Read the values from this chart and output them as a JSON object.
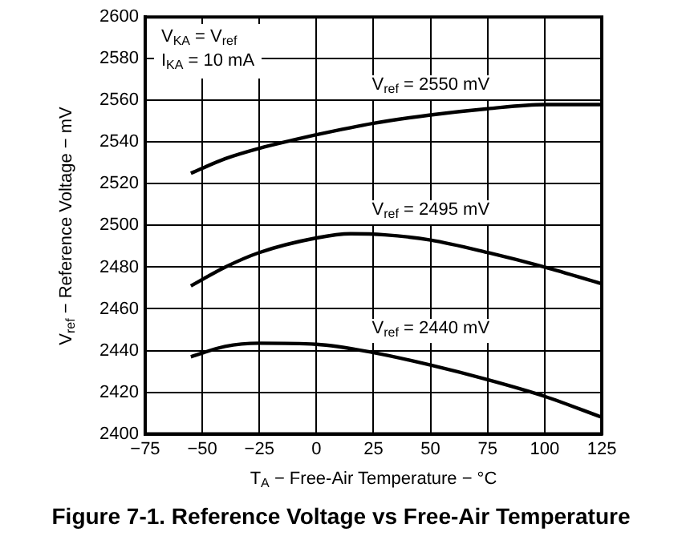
{
  "chart_data": {
    "type": "line",
    "title": "Figure 7-1. Reference Voltage vs Free-Air Temperature",
    "xlabel": "T$_{A}$ − Free-Air Temperature − °C",
    "ylabel": "V$_{ref}$ − Reference Voltage − mV",
    "annotations": [
      "V$_{KA}$ = V$_{ref}$",
      "I$_{KA}$ = 10 mA"
    ],
    "xlim": [
      -75,
      125
    ],
    "xticks": [
      -75,
      -50,
      -25,
      0,
      25,
      50,
      75,
      100,
      125
    ],
    "ylim": [
      2400,
      2600
    ],
    "yticks": [
      2400,
      2420,
      2440,
      2460,
      2480,
      2500,
      2520,
      2540,
      2560,
      2580,
      2600
    ],
    "grid": true,
    "legend": false,
    "marker": "none",
    "line_style": "solid",
    "series": [
      {
        "name": "V$_{ref}$ = 2550 mV",
        "color": "#000000",
        "x": [
          -55,
          -40,
          -25,
          -10,
          0,
          25,
          50,
          75,
          100,
          125
        ],
        "values": [
          2525,
          2532,
          2537,
          2541,
          2543.5,
          2549,
          2553,
          2556,
          2558,
          2558
        ]
      },
      {
        "name": "V$_{ref}$ = 2495 mV",
        "color": "#000000",
        "x": [
          -55,
          -40,
          -25,
          0,
          15,
          30,
          50,
          75,
          100,
          125
        ],
        "values": [
          2471,
          2480,
          2487,
          2494,
          2496,
          2495.5,
          2493,
          2487,
          2480,
          2472
        ]
      },
      {
        "name": "V$_{ref}$ = 2440 mV",
        "color": "#000000",
        "x": [
          -55,
          -40,
          -25,
          0,
          25,
          50,
          75,
          100,
          125
        ],
        "values": [
          2437,
          2442,
          2443.5,
          2443,
          2439,
          2433,
          2426,
          2418,
          2408
        ]
      }
    ]
  }
}
